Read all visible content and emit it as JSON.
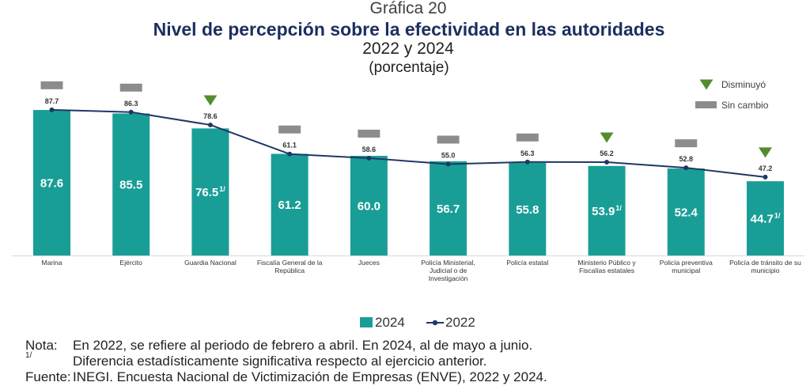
{
  "header": {
    "figure_label": "Gráfica 20"
  },
  "chart_data": {
    "type": "bar",
    "title": "Nivel de percepción sobre la efectividad en las autoridades",
    "subtitle": "2022 y 2024",
    "unit": "(porcentaje)",
    "ylim": [
      0,
      100
    ],
    "grid": false,
    "legend_position": "bottom",
    "categories": [
      "Marina",
      "Ejército",
      "Guardia Nacional",
      "Fiscalía General de la República",
      "Jueces",
      "Policía Ministerial, Judicial o de Investigación",
      "Policía estatal",
      "Ministerio Público y Fiscalías estatales",
      "Policía preventiva municipal",
      "Policía de tránsito de su municipio"
    ],
    "series": [
      {
        "name": "2024",
        "type": "bar",
        "color": "#199e97",
        "values": [
          87.6,
          85.5,
          76.5,
          61.2,
          60.0,
          56.7,
          55.8,
          53.9,
          52.4,
          44.7
        ],
        "significant_difference": [
          false,
          false,
          true,
          false,
          false,
          false,
          false,
          true,
          false,
          true
        ]
      },
      {
        "name": "2022",
        "type": "line",
        "color": "#203864",
        "values": [
          87.7,
          86.3,
          78.6,
          61.1,
          58.6,
          55.0,
          56.3,
          56.2,
          52.8,
          47.2
        ]
      }
    ],
    "change_legend": {
      "position": "top-right",
      "items": [
        {
          "label": "Disminuyó",
          "icon": "down-triangle-icon",
          "color": "#548b2f"
        },
        {
          "label": "Sin cambio",
          "icon": "gray-dash-icon",
          "color": "#8c8c8c"
        }
      ]
    },
    "change_markers": [
      "gray-dash-icon",
      "gray-dash-icon",
      "down-triangle-icon",
      "gray-dash-icon",
      "gray-dash-icon",
      "gray-dash-icon",
      "gray-dash-icon",
      "down-triangle-icon",
      "gray-dash-icon",
      "down-triangle-icon"
    ]
  },
  "notes": {
    "note_label": "Nota:",
    "note_text": "En 2022, se refiere al periodo de febrero a abril. En 2024, al de mayo a junio.",
    "footnote_mark": "1/",
    "footnote_text": "Diferencia estadísticamente significativa respecto al ejercicio anterior.",
    "source_label": "Fuente:",
    "source_text": "INEGI. Encuesta Nacional de Victimización de Empresas (ENVE), 2022 y 2024."
  }
}
